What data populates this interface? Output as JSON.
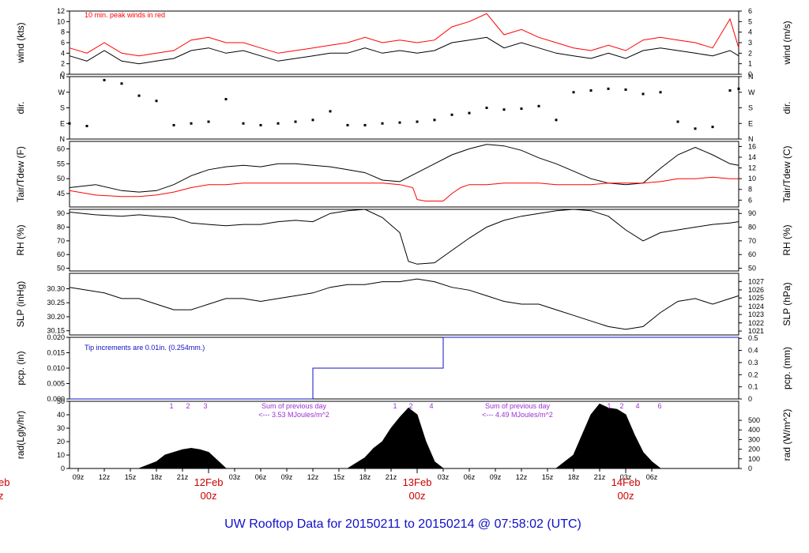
{
  "footer": {
    "title": "UW Rooftop Data for 20150211  to  20150214 @ 07:58:02  (UTC)",
    "color": "#1010c8"
  },
  "x_axis": {
    "ticks": [
      "09z",
      "12z",
      "15z",
      "18z",
      "21z",
      "03z",
      "06z",
      "09z",
      "12z",
      "15z",
      "18z",
      "21z",
      "03z",
      "06z",
      "09z",
      "12z",
      "15z",
      "18z",
      "21z",
      "03z",
      "06z"
    ],
    "day_labels": [
      {
        "date": "12Feb",
        "time": "00z"
      },
      {
        "date": "13Feb",
        "time": "00z"
      },
      {
        "date": "14Feb",
        "time": "00z"
      }
    ],
    "edge_label": {
      "date": "eb",
      "time": "z"
    },
    "range_hours": [
      0,
      77
    ]
  },
  "chart_data": [
    {
      "id": "wind",
      "type": "line",
      "ylabel_left": "wind (kts)",
      "ylabel_right": "wind (m/s)",
      "ylim": [
        0,
        12
      ],
      "ticks_left": [
        "0",
        "2",
        "4",
        "6",
        "8",
        "10",
        "12"
      ],
      "ylim_right": [
        0,
        6
      ],
      "ticks_right": [
        "0",
        "1",
        "2",
        "3",
        "4",
        "5",
        "6"
      ],
      "annotation": "10 min. peak winds in red",
      "series": [
        {
          "name": "wind speed",
          "color": "#000000",
          "x": [
            0,
            2,
            4,
            6,
            8,
            10,
            12,
            14,
            16,
            18,
            20,
            22,
            24,
            26,
            28,
            30,
            32,
            34,
            36,
            38,
            40,
            42,
            44,
            46,
            48,
            50,
            52,
            54,
            56,
            58,
            60,
            62,
            64,
            66,
            68,
            70,
            72,
            74,
            76,
            77
          ],
          "values": [
            3.5,
            2.5,
            4.5,
            2.5,
            2,
            2.5,
            3,
            4.5,
            5,
            4,
            4.5,
            3.5,
            2.5,
            3,
            3.5,
            4,
            4,
            5,
            4,
            4.5,
            4,
            4.5,
            6,
            6.5,
            7,
            5,
            6,
            5,
            4,
            3.5,
            3,
            4,
            3,
            4.5,
            5,
            4.5,
            4,
            3.5,
            4.5,
            3.5
          ]
        },
        {
          "name": "10 min. peak winds",
          "color": "#ff0000",
          "x": [
            0,
            2,
            4,
            6,
            8,
            10,
            12,
            14,
            16,
            18,
            20,
            22,
            24,
            26,
            28,
            30,
            32,
            34,
            36,
            38,
            40,
            42,
            44,
            46,
            48,
            50,
            52,
            54,
            56,
            58,
            60,
            62,
            64,
            66,
            68,
            70,
            72,
            74,
            76,
            77
          ],
          "values": [
            5,
            4,
            6,
            4,
            3.5,
            4,
            4.5,
            6.5,
            7,
            6,
            6,
            5,
            4,
            4.5,
            5,
            5.5,
            6,
            7,
            6,
            6.5,
            6,
            6.5,
            9,
            10,
            11.5,
            7.5,
            8.5,
            7,
            6,
            5,
            4.5,
            5.5,
            4.5,
            6.5,
            7,
            6.5,
            6,
            5,
            10.5,
            5
          ]
        }
      ]
    },
    {
      "id": "dir",
      "type": "scatter",
      "ylabel_left": "dir.",
      "ylabel_right": "dir.",
      "ylim": [
        0,
        360
      ],
      "ticks_left": [
        "N",
        "E",
        "S",
        "W",
        "N"
      ],
      "ticks_right": [
        "N",
        "E",
        "S",
        "W",
        "N"
      ],
      "series": [
        {
          "name": "wind direction",
          "color": "#000000",
          "x": [
            0,
            2,
            4,
            6,
            8,
            10,
            12,
            14,
            16,
            18,
            20,
            22,
            24,
            26,
            28,
            30,
            32,
            34,
            36,
            38,
            40,
            42,
            44,
            46,
            48,
            50,
            52,
            54,
            56,
            58,
            60,
            62,
            64,
            66,
            68,
            70,
            72,
            74,
            76,
            77
          ],
          "values": [
            90,
            75,
            340,
            320,
            250,
            220,
            80,
            90,
            100,
            230,
            90,
            80,
            90,
            100,
            110,
            160,
            80,
            80,
            90,
            95,
            100,
            110,
            140,
            150,
            180,
            170,
            175,
            190,
            110,
            270,
            280,
            290,
            285,
            260,
            270,
            100,
            60,
            70,
            280,
            290
          ]
        }
      ]
    },
    {
      "id": "temp",
      "type": "line",
      "ylabel_left": "Tair/Tdew (F)",
      "ylabel_right": "Tair/Tdew (C)",
      "ylim": [
        40.5,
        62.5
      ],
      "ticks_left": [
        "45",
        "50",
        "55",
        "60"
      ],
      "ylim_right_ticks": [
        "6",
        "8",
        "10",
        "12",
        "14",
        "16"
      ],
      "series": [
        {
          "name": "Tair",
          "color": "#000000",
          "x": [
            0,
            3,
            6,
            8,
            10,
            12,
            14,
            16,
            18,
            20,
            22,
            24,
            26,
            28,
            30,
            32,
            34,
            36,
            38,
            40,
            42,
            44,
            46,
            48,
            50,
            52,
            54,
            56,
            58,
            60,
            62,
            64,
            66,
            68,
            70,
            72,
            74,
            76,
            77
          ],
          "values": [
            47,
            48,
            46,
            45.5,
            46,
            48,
            51,
            53,
            54,
            54.5,
            54,
            55,
            55,
            54.5,
            54,
            53,
            52,
            49.5,
            49,
            52,
            55,
            58,
            60,
            61.5,
            61,
            59.5,
            57,
            55,
            52.5,
            50,
            48.5,
            48,
            48.5,
            53.5,
            58,
            60.5,
            58,
            55,
            54.5
          ]
        },
        {
          "name": "Tdew",
          "color": "#ff0000",
          "x": [
            0,
            3,
            6,
            8,
            10,
            12,
            14,
            16,
            18,
            20,
            22,
            24,
            26,
            28,
            30,
            32,
            34,
            36,
            38,
            39.5,
            40,
            41,
            42,
            43,
            44,
            45,
            46,
            48,
            50,
            52,
            54,
            56,
            58,
            60,
            62,
            64,
            66,
            68,
            70,
            72,
            74,
            76,
            77
          ],
          "values": [
            46,
            44.5,
            44,
            44,
            44.5,
            45.5,
            47,
            48,
            48,
            48.5,
            48.5,
            48.5,
            48.5,
            48.5,
            48.5,
            48.5,
            48.5,
            48.5,
            48,
            47,
            43,
            42.5,
            42.5,
            42.5,
            45,
            47,
            48,
            48,
            48.5,
            48.5,
            48.5,
            48,
            48,
            48,
            48.5,
            48.5,
            48.5,
            49,
            50,
            50,
            50.5,
            50,
            50
          ]
        }
      ]
    },
    {
      "id": "rh",
      "type": "line",
      "ylabel_left": "RH (%)",
      "ylabel_right": "RH (%)",
      "ylim": [
        48,
        93
      ],
      "ticks_left": [
        "50",
        "60",
        "70",
        "80",
        "90"
      ],
      "ticks_right": [
        "50",
        "60",
        "70",
        "80",
        "90"
      ],
      "series": [
        {
          "name": "RH",
          "color": "#000000",
          "x": [
            0,
            3,
            6,
            8,
            10,
            12,
            14,
            16,
            18,
            20,
            22,
            24,
            26,
            28,
            30,
            32,
            34,
            36,
            38,
            39,
            40,
            42,
            44,
            46,
            48,
            50,
            52,
            54,
            56,
            58,
            60,
            62,
            64,
            66,
            68,
            70,
            72,
            74,
            76,
            77
          ],
          "values": [
            91,
            89,
            88,
            89,
            88,
            87,
            83,
            82,
            81,
            82,
            82,
            84,
            85,
            84,
            90,
            92,
            93,
            87,
            76,
            55,
            53,
            54,
            63,
            72,
            80,
            85,
            88,
            90,
            92,
            93,
            92,
            88,
            78,
            70,
            76,
            78,
            80,
            82,
            83,
            84
          ]
        }
      ]
    },
    {
      "id": "slp",
      "type": "line",
      "ylabel_left": "SLP (inHg)",
      "ylabel_right": "SLP (hPa)",
      "ylim": [
        30.135,
        30.355
      ],
      "ticks_left": [
        "30.15",
        "30.20",
        "30.25",
        "30.30"
      ],
      "ticks_right": [
        "1021",
        "1022",
        "1023",
        "1024",
        "1025",
        "1026",
        "1027"
      ],
      "series": [
        {
          "name": "SLP",
          "color": "#000000",
          "x": [
            0,
            2,
            4,
            6,
            8,
            10,
            12,
            14,
            16,
            18,
            20,
            22,
            24,
            26,
            28,
            30,
            32,
            34,
            36,
            38,
            40,
            42,
            44,
            46,
            48,
            50,
            52,
            54,
            56,
            58,
            60,
            62,
            64,
            66,
            68,
            70,
            72,
            74,
            76,
            77
          ],
          "values": [
            30.305,
            30.295,
            30.285,
            30.265,
            30.265,
            30.245,
            30.225,
            30.225,
            30.245,
            30.265,
            30.265,
            30.255,
            30.265,
            30.275,
            30.285,
            30.305,
            30.315,
            30.315,
            30.325,
            30.325,
            30.335,
            30.325,
            30.305,
            30.295,
            30.275,
            30.255,
            30.245,
            30.245,
            30.225,
            30.205,
            30.185,
            30.165,
            30.155,
            30.165,
            30.215,
            30.255,
            30.265,
            30.245,
            30.265,
            30.275
          ]
        }
      ]
    },
    {
      "id": "pcp",
      "type": "line",
      "ylabel_left": "pcp. (in)",
      "ylabel_right": "pcp. (mm)",
      "ylim": [
        0,
        0.02
      ],
      "ticks_left": [
        "0.000",
        "0.005",
        "0.010",
        "0.015",
        "0.020"
      ],
      "ticks_right": [
        "0",
        "0.1",
        "0.2",
        "0.3",
        "0.4",
        "0.5"
      ],
      "annotation": "Tip increments are 0.01in. (0.254mm.)",
      "series": [
        {
          "name": "accumulated precipitation",
          "color": "#1010c8",
          "x": [
            0,
            28,
            28,
            43,
            43,
            77
          ],
          "values": [
            0,
            0,
            0.01,
            0.01,
            0.02,
            0.02
          ]
        }
      ]
    },
    {
      "id": "rad",
      "type": "area",
      "ylabel_left": "rad(Lgly/hr)",
      "ylabel_right": "rad (W/m^2)",
      "ylim": [
        0,
        50
      ],
      "ticks_left": [
        "0",
        "10",
        "20",
        "30",
        "40",
        "50"
      ],
      "ticks_right": [
        "0",
        "100",
        "200",
        "300",
        "400",
        "500"
      ],
      "day_markers": [
        "1",
        "2",
        "3",
        "1",
        "2",
        "4",
        "1",
        "2",
        "4",
        "6"
      ],
      "daily_sums": [
        {
          "line1": "Sum of previous day",
          "line2": "<--- 3.53 MJoules/m^2"
        },
        {
          "line1": "Sum of previous day",
          "line2": "<--- 4.49 MJoules/m^2"
        }
      ],
      "series": [
        {
          "name": "solar radiation",
          "color": "#000000",
          "x": [
            8,
            10,
            11,
            12,
            13,
            14,
            15,
            16,
            17,
            18,
            32,
            34,
            35,
            36,
            37,
            38,
            39,
            40,
            41,
            42,
            43,
            56,
            58,
            59,
            60,
            61,
            62,
            63,
            64,
            65,
            66,
            67,
            68
          ],
          "values": [
            0,
            5,
            10,
            12,
            14,
            15,
            14,
            12,
            6,
            0,
            0,
            8,
            15,
            20,
            30,
            38,
            45,
            40,
            20,
            5,
            0,
            0,
            10,
            25,
            40,
            48,
            45,
            44,
            40,
            25,
            12,
            5,
            0
          ]
        }
      ]
    }
  ]
}
